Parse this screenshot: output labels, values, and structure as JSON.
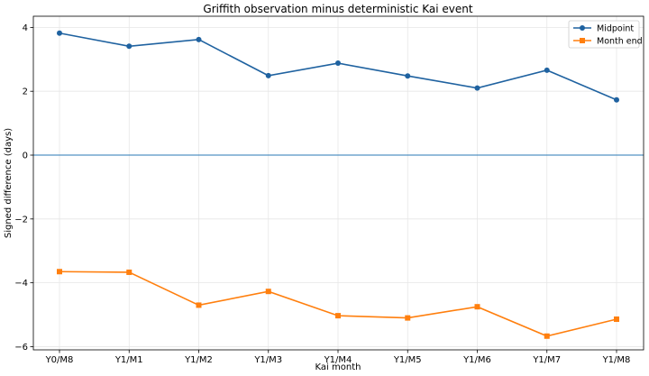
{
  "chart_data": {
    "type": "line",
    "title": "Griffith observation minus deterministic Kai event",
    "xlabel": "Kai month",
    "ylabel": "Signed difference (days)",
    "categories": [
      "Y0/M8",
      "Y1/M1",
      "Y1/M2",
      "Y1/M3",
      "Y1/M4",
      "Y1/M5",
      "Y1/M6",
      "Y1/M7",
      "Y1/M8"
    ],
    "ylim": [
      -6.1,
      4.35
    ],
    "yticks": [
      4,
      2,
      0,
      -2,
      -4,
      -6
    ],
    "ytick_labels": [
      "4",
      "2",
      "0",
      "−2",
      "−4",
      "−6"
    ],
    "grid": true,
    "reference_line": 0,
    "legend_position": "top-right",
    "series": [
      {
        "name": "Midpoint",
        "color": "#1f62a0",
        "marker": "circle",
        "values": [
          3.82,
          3.41,
          3.62,
          2.49,
          2.88,
          2.48,
          2.1,
          2.66,
          1.73
        ]
      },
      {
        "name": "Month end",
        "color": "#ff7f0e",
        "marker": "square",
        "values": [
          -3.65,
          -3.67,
          -4.7,
          -4.27,
          -5.03,
          -5.1,
          -4.75,
          -5.67,
          -5.14
        ]
      }
    ],
    "reference_color": "#2a7ab5"
  }
}
